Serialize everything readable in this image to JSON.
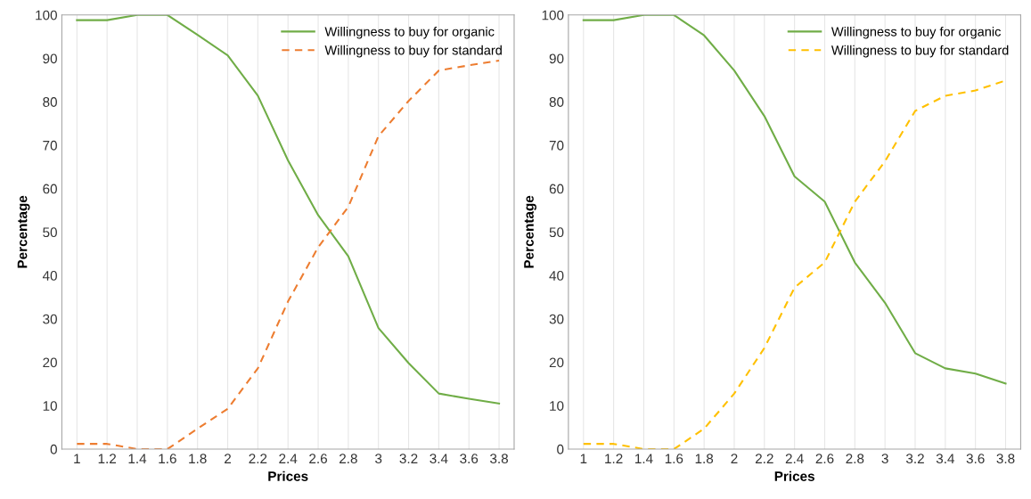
{
  "chart_data": [
    {
      "type": "line",
      "xlabel": "Prices",
      "ylabel": "Percentage",
      "categories": [
        "1",
        "1.2",
        "1.4",
        "1.6",
        "1.8",
        "2",
        "2.2",
        "2.4",
        "2.6",
        "2.8",
        "3",
        "3.2",
        "3.4",
        "3.6",
        "3.8"
      ],
      "ylim": [
        0,
        100
      ],
      "yticks": [
        0,
        10,
        20,
        30,
        40,
        50,
        60,
        70,
        80,
        90,
        100
      ],
      "grid": "x",
      "legend": "top right",
      "series": [
        {
          "name": "Willingness to buy for organic",
          "color": "#70ad47",
          "line_style": "solid",
          "values": [
            98.8,
            98.8,
            100,
            100,
            95.4,
            90.7,
            81.4,
            66.5,
            53.9,
            44.4,
            27.9,
            19.8,
            12.8,
            11.6,
            10.5
          ]
        },
        {
          "name": "Willingness to buy for standard",
          "color": "#ed7d31",
          "line_style": "dashed",
          "values": [
            1.2,
            1.2,
            0,
            0,
            4.7,
            9.3,
            18.6,
            34,
            46.5,
            55.8,
            72.1,
            80.2,
            87.2,
            88.4,
            89.5
          ]
        }
      ]
    },
    {
      "type": "line",
      "xlabel": "Prices",
      "ylabel": "Percentage",
      "categories": [
        "1",
        "1.2",
        "1.4",
        "1.6",
        "1.8",
        "2",
        "2.2",
        "2.4",
        "2.6",
        "2.8",
        "3",
        "3.2",
        "3.4",
        "3.6",
        "3.8"
      ],
      "ylim": [
        0,
        100
      ],
      "yticks": [
        0,
        10,
        20,
        30,
        40,
        50,
        60,
        70,
        80,
        90,
        100
      ],
      "grid": "x",
      "legend": "top right",
      "series": [
        {
          "name": "Willingness to buy for organic",
          "color": "#70ad47",
          "line_style": "solid",
          "values": [
            98.8,
            98.8,
            100,
            100,
            95.3,
            87.2,
            76.7,
            62.8,
            57,
            43,
            33.7,
            22.1,
            18.6,
            17.4,
            15.1
          ]
        },
        {
          "name": "Willingness to buy for standard",
          "color": "#ffc000",
          "line_style": "dashed",
          "values": [
            1.2,
            1.2,
            0,
            0,
            4.7,
            12.8,
            23.3,
            37.2,
            43,
            57,
            66.3,
            77.9,
            81.4,
            82.6,
            84.9
          ]
        }
      ]
    }
  ]
}
